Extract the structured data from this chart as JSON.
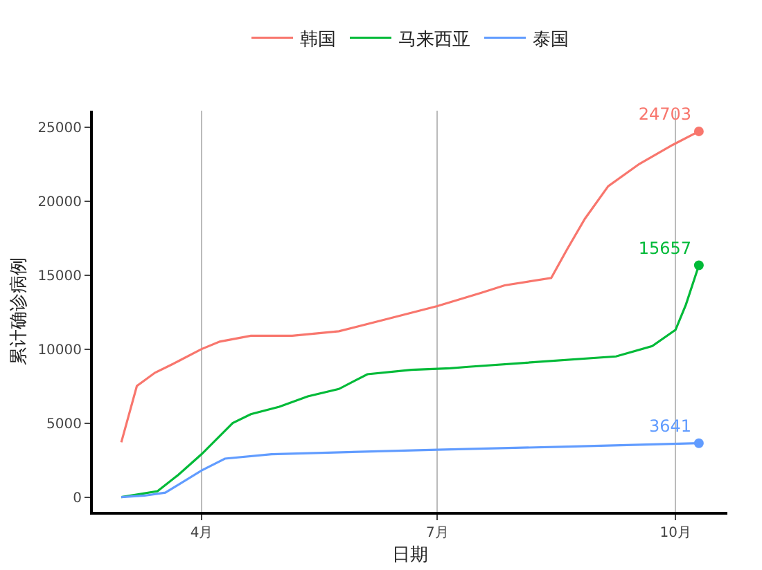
{
  "chart_data": {
    "type": "line",
    "xlabel": "日期",
    "ylabel": "累计确诊病例",
    "xlim": [
      "--02-19",
      "--10-21"
    ],
    "ylim": [
      -1000,
      26100
    ],
    "xticks": [
      {
        "value": "--04-01",
        "label": "4月"
      },
      {
        "value": "--07-01",
        "label": "7月"
      },
      {
        "value": "--10-01",
        "label": "10月"
      }
    ],
    "yticks": [
      0,
      5000,
      10000,
      15000,
      20000,
      25000
    ],
    "grid": "x",
    "legend": "top",
    "line_style": "solid",
    "series": [
      {
        "name": "韩国",
        "color": "#f8766d",
        "x": [
          "--03-01",
          "--03-07",
          "--03-14",
          "--03-21",
          "--04-01",
          "--04-08",
          "--04-20",
          "--05-06",
          "--05-24",
          "--06-11",
          "--07-01",
          "--07-18",
          "--07-27",
          "--08-14",
          "--08-20",
          "--08-27",
          "--09-05",
          "--09-17",
          "--09-30",
          "--10-10"
        ],
        "values": [
          3700,
          7500,
          8400,
          9000,
          10000,
          10500,
          10900,
          10900,
          11200,
          12000,
          12900,
          13800,
          14300,
          14800,
          16700,
          18800,
          21000,
          22500,
          23800,
          24703
        ],
        "value_labels": [
          null,
          null,
          null,
          null,
          null,
          null,
          null,
          null,
          null,
          null,
          null,
          null,
          null,
          null,
          null,
          null,
          null,
          null,
          null,
          "24703"
        ]
      },
      {
        "name": "马来西亚",
        "color": "#00ba38",
        "x": [
          "--03-01",
          "--03-15",
          "--03-23",
          "--04-01",
          "--04-13",
          "--04-20",
          "--05-01",
          "--05-12",
          "--05-24",
          "--06-04",
          "--06-21",
          "--07-06",
          "--07-13",
          "--09-08",
          "--09-22",
          "--10-01",
          "--10-05",
          "--10-10"
        ],
        "values": [
          0,
          400,
          1500,
          2900,
          5000,
          5600,
          6100,
          6800,
          7300,
          8300,
          8600,
          8700,
          8800,
          9500,
          10200,
          11300,
          13000,
          15657
        ],
        "value_labels": [
          null,
          null,
          null,
          null,
          null,
          null,
          null,
          null,
          null,
          null,
          null,
          null,
          null,
          null,
          null,
          null,
          null,
          "15657"
        ]
      },
      {
        "name": "泰国",
        "color": "#619cff",
        "x": [
          "--03-01",
          "--03-10",
          "--03-18",
          "--04-01",
          "--04-10",
          "--04-28",
          "--07-01",
          "--08-18",
          "--10-10"
        ],
        "values": [
          0,
          100,
          300,
          1800,
          2600,
          2900,
          3200,
          3400,
          3641
        ],
        "value_labels": [
          null,
          null,
          null,
          null,
          null,
          null,
          null,
          null,
          "3641"
        ]
      }
    ]
  }
}
